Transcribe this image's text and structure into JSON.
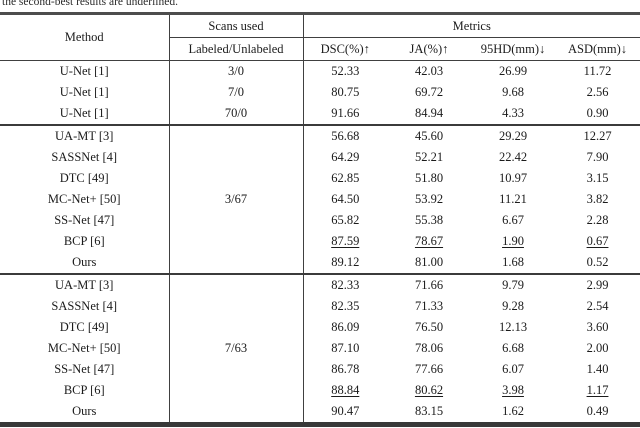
{
  "caption": "the second-best results are underlined.",
  "colors": {
    "background": "#ffffff",
    "text": "#1b1b1b",
    "rule": "#404040"
  },
  "table": {
    "header": {
      "method": "Method",
      "scans_used": "Scans used",
      "labeled_unlabeled": "Labeled/Unlabeled",
      "metrics": "Metrics",
      "metric_columns": [
        "DSC(%)↑",
        "JA(%)↑",
        "95HD(mm)↓",
        "ASD(mm)↓"
      ]
    },
    "sections": [
      {
        "scans_mode": "per-row",
        "rows": [
          {
            "method": "U-Net [1]",
            "scans": "3/0",
            "values": [
              "52.33",
              "42.03",
              "26.99",
              "11.72"
            ],
            "emphasis": "none"
          },
          {
            "method": "U-Net [1]",
            "scans": "7/0",
            "values": [
              "80.75",
              "69.72",
              "9.68",
              "2.56"
            ],
            "emphasis": "none"
          },
          {
            "method": "U-Net [1]",
            "scans": "70/0",
            "values": [
              "91.66",
              "84.94",
              "4.33",
              "0.90"
            ],
            "emphasis": "none"
          }
        ]
      },
      {
        "scans_mode": "shared",
        "shared_scans": "3/67",
        "rows": [
          {
            "method": "UA-MT [3]",
            "values": [
              "56.68",
              "45.60",
              "29.29",
              "12.27"
            ],
            "emphasis": "none"
          },
          {
            "method": "SASSNet [4]",
            "values": [
              "64.29",
              "52.21",
              "22.42",
              "7.90"
            ],
            "emphasis": "none"
          },
          {
            "method": "DTC [49]",
            "values": [
              "62.85",
              "51.80",
              "10.97",
              "3.15"
            ],
            "emphasis": "none"
          },
          {
            "method": "MC-Net+ [50]",
            "values": [
              "64.50",
              "53.92",
              "11.21",
              "3.82"
            ],
            "emphasis": "none"
          },
          {
            "method": "SS-Net [47]",
            "values": [
              "65.82",
              "55.38",
              "6.67",
              "2.28"
            ],
            "emphasis": "none"
          },
          {
            "method": "BCP [6]",
            "values": [
              "87.59",
              "78.67",
              "1.90",
              "0.67"
            ],
            "emphasis": "underline"
          },
          {
            "method": "Ours",
            "values": [
              "89.12",
              "81.00",
              "1.68",
              "0.52"
            ],
            "emphasis": "bold"
          }
        ]
      },
      {
        "scans_mode": "shared",
        "shared_scans": "7/63",
        "rows": [
          {
            "method": "UA-MT [3]",
            "values": [
              "82.33",
              "71.66",
              "9.79",
              "2.99"
            ],
            "emphasis": "none"
          },
          {
            "method": "SASSNet [4]",
            "values": [
              "82.35",
              "71.33",
              "9.28",
              "2.54"
            ],
            "emphasis": "none"
          },
          {
            "method": "DTC [49]",
            "values": [
              "86.09",
              "76.50",
              "12.13",
              "3.60"
            ],
            "emphasis": "none"
          },
          {
            "method": "MC-Net+ [50]",
            "values": [
              "87.10",
              "78.06",
              "6.68",
              "2.00"
            ],
            "emphasis": "none"
          },
          {
            "method": "SS-Net [47]",
            "values": [
              "86.78",
              "77.66",
              "6.07",
              "1.40"
            ],
            "emphasis": "none"
          },
          {
            "method": "BCP [6]",
            "values": [
              "88.84",
              "80.62",
              "3.98",
              "1.17"
            ],
            "emphasis": "underline"
          },
          {
            "method": "Ours",
            "values": [
              "90.47",
              "83.15",
              "1.62",
              "0.49"
            ],
            "emphasis": "bold"
          }
        ]
      }
    ]
  }
}
